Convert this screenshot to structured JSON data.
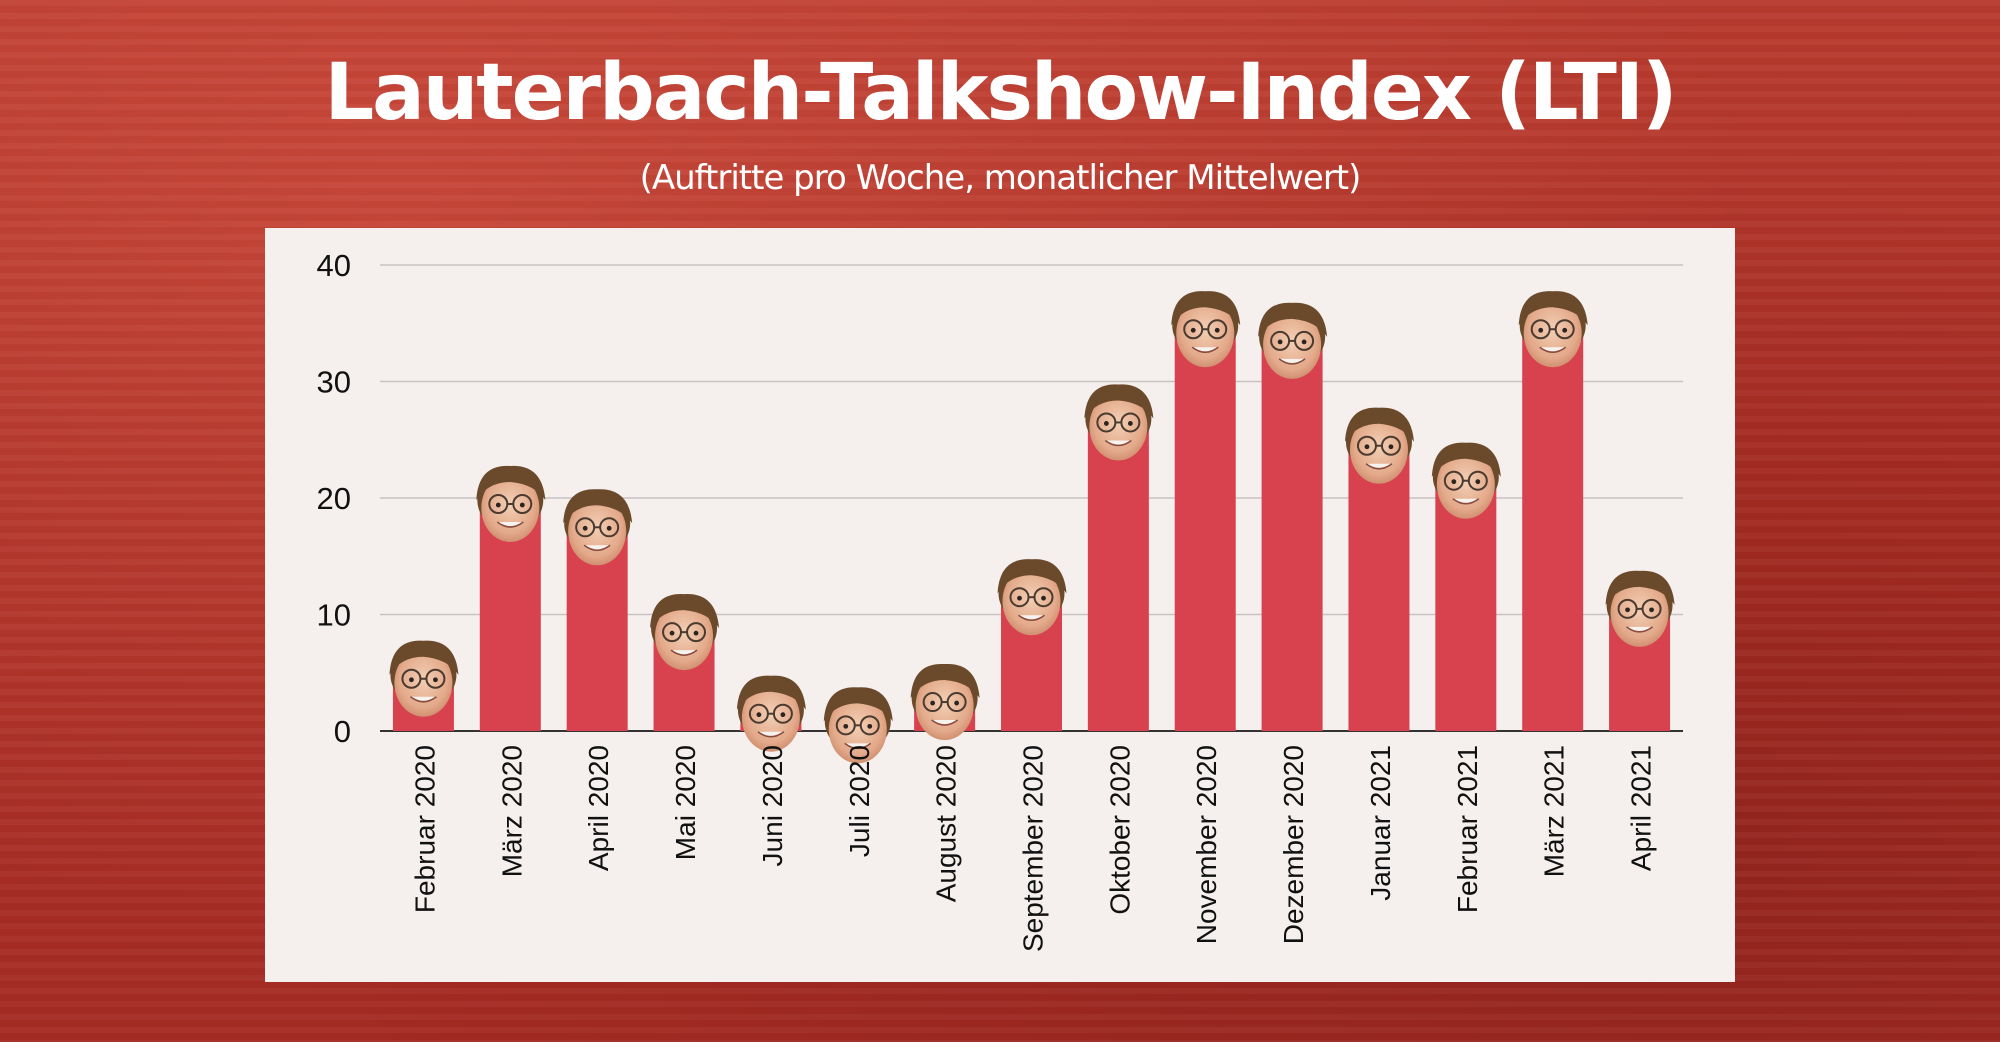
{
  "colors": {
    "background": "#b0332a",
    "panel": "#f5efee",
    "bar": "#d8424f",
    "grid": "#c9c2c2",
    "axis": "#333333",
    "text": "#111111",
    "title": "#ffffff"
  },
  "chart_data": {
    "type": "bar",
    "title": "Lauterbach-Talkshow-Index (LTI)",
    "subtitle": "(Auftritte pro Woche, monatlicher Mittelwert)",
    "xlabel": "",
    "ylabel": "",
    "ylim": [
      0,
      40
    ],
    "yticks": [
      "0",
      "10",
      "20",
      "30",
      "40"
    ],
    "grid": true,
    "bar_marker": "face-icon",
    "categories": [
      "Februar 2020",
      "März 2020",
      "April 2020",
      "Mai 2020",
      "Juni  2020",
      "Juli  2020",
      "August 2020",
      "September 2020",
      "Oktober 2020",
      "November 2020",
      "Dezember  2020",
      "Januar 2021",
      "Februar 2021",
      "März 2021",
      "April 2021"
    ],
    "values": [
      5,
      20,
      18,
      9,
      2,
      1,
      3,
      12,
      27,
      35,
      34,
      25,
      22,
      35,
      11
    ]
  }
}
